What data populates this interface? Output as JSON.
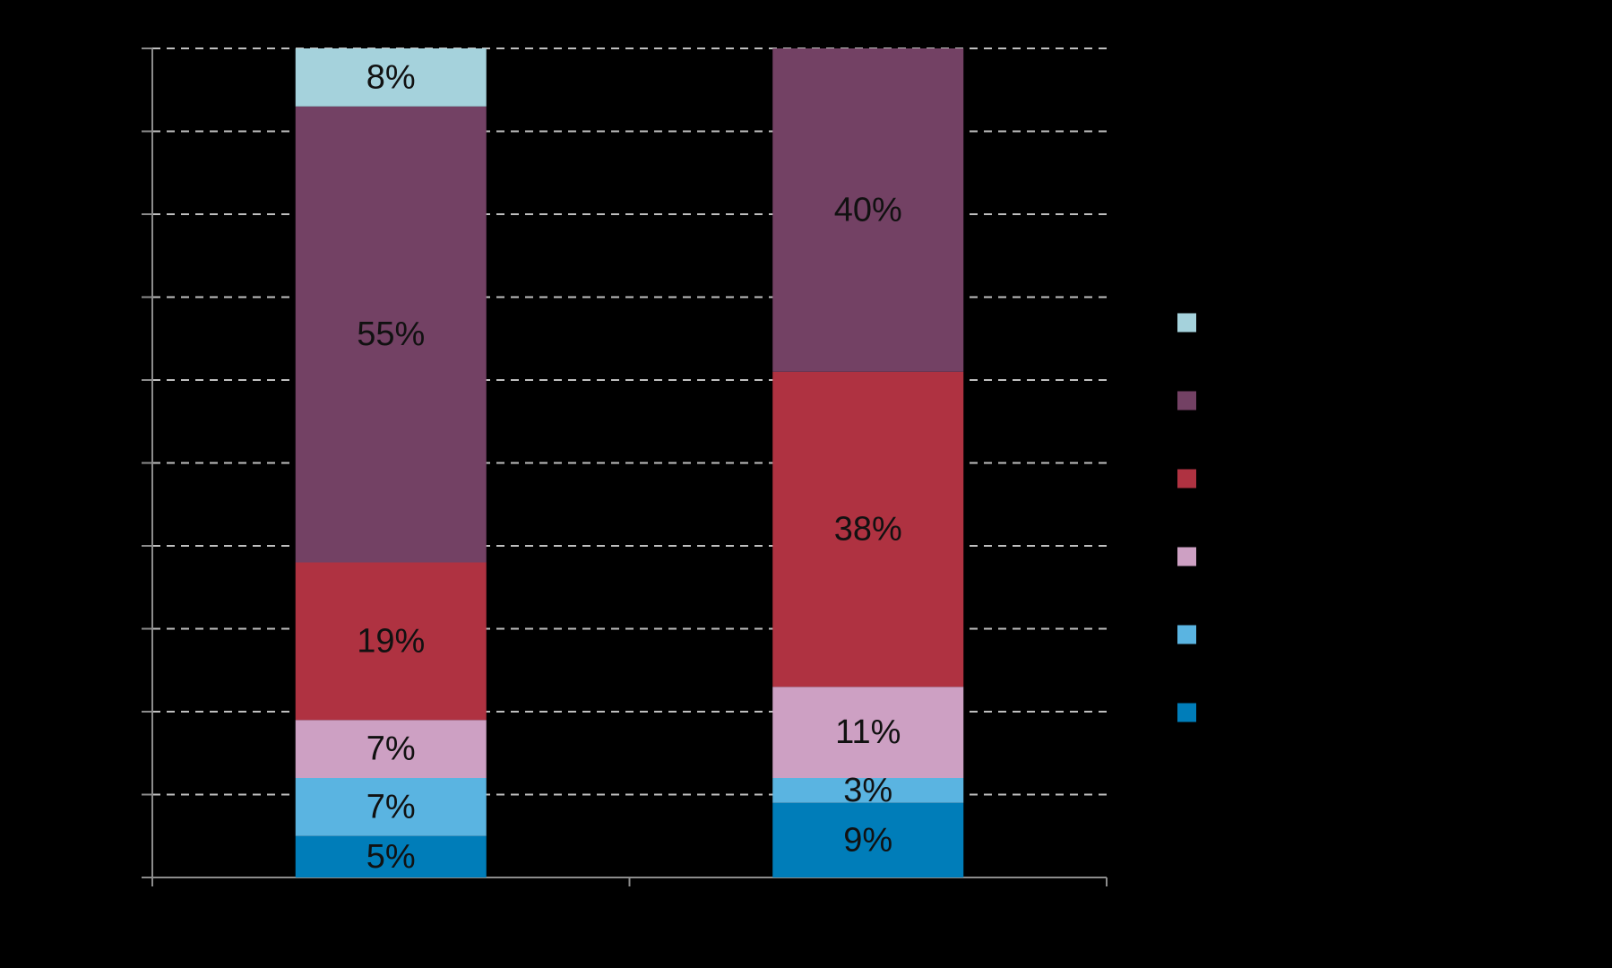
{
  "chart_data": {
    "type": "bar",
    "stacked": true,
    "categories": [
      "",
      ""
    ],
    "grid": true,
    "legend_position": "right",
    "ylim": [
      0,
      100
    ],
    "series": [
      {
        "name": "",
        "color": "#007DB9",
        "values": [
          5,
          9
        ]
      },
      {
        "name": "",
        "color": "#5AB4E1",
        "values": [
          7,
          3
        ]
      },
      {
        "name": "",
        "color": "#CDA0C3",
        "values": [
          7,
          11
        ]
      },
      {
        "name": "",
        "color": "#AF3241",
        "values": [
          19,
          38
        ]
      },
      {
        "name": "",
        "color": "#734164",
        "values": [
          55,
          40
        ]
      },
      {
        "name": "",
        "color": "#A5D2DC",
        "values": [
          8,
          0
        ]
      }
    ],
    "data_labels": [
      [
        "5%",
        "9%"
      ],
      [
        "7%",
        "3%"
      ],
      [
        "7%",
        "11%"
      ],
      [
        "19%",
        "38%"
      ],
      [
        "55%",
        "40%"
      ],
      [
        "8%",
        ""
      ]
    ]
  }
}
